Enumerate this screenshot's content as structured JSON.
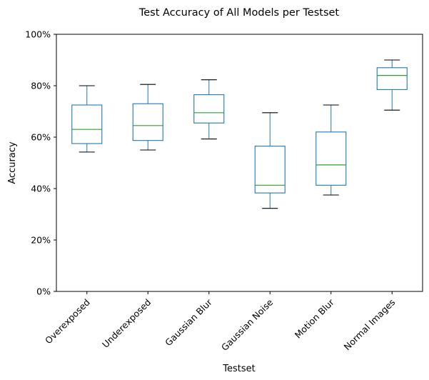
{
  "chart_data": {
    "type": "box",
    "title": "Test Accuracy of All Models per Testset",
    "xlabel": "Testset",
    "ylabel": "Accuracy",
    "ylim": [
      0,
      100
    ],
    "yticks": [
      0,
      20,
      40,
      60,
      80,
      100
    ],
    "ytick_labels": [
      "0%",
      "20%",
      "40%",
      "60%",
      "80%",
      "100%"
    ],
    "grid": false,
    "colors": {
      "box": "#1f77b4",
      "median": "#2ca02c",
      "whisker": "#1f77b4",
      "cap": "#000000"
    },
    "categories": [
      "Overexposed",
      "Underexposed",
      "Gaussian Blur",
      "Gaussian Noise",
      "Motion Blur",
      "Normal Images"
    ],
    "boxes": [
      {
        "category": "Overexposed",
        "min": 54.2,
        "q1": 57.5,
        "median": 63.0,
        "q3": 72.5,
        "max": 80.0
      },
      {
        "category": "Underexposed",
        "min": 55.0,
        "q1": 58.7,
        "median": 64.5,
        "q3": 73.0,
        "max": 80.5
      },
      {
        "category": "Gaussian Blur",
        "min": 59.3,
        "q1": 65.5,
        "median": 69.5,
        "q3": 76.5,
        "max": 82.3
      },
      {
        "category": "Gaussian Noise",
        "min": 32.3,
        "q1": 38.3,
        "median": 41.3,
        "q3": 56.5,
        "max": 69.5
      },
      {
        "category": "Motion Blur",
        "min": 37.5,
        "q1": 41.3,
        "median": 49.2,
        "q3": 62.0,
        "max": 72.5
      },
      {
        "category": "Normal Images",
        "min": 70.5,
        "q1": 78.5,
        "median": 84.0,
        "q3": 87.0,
        "max": 90.0
      }
    ]
  }
}
